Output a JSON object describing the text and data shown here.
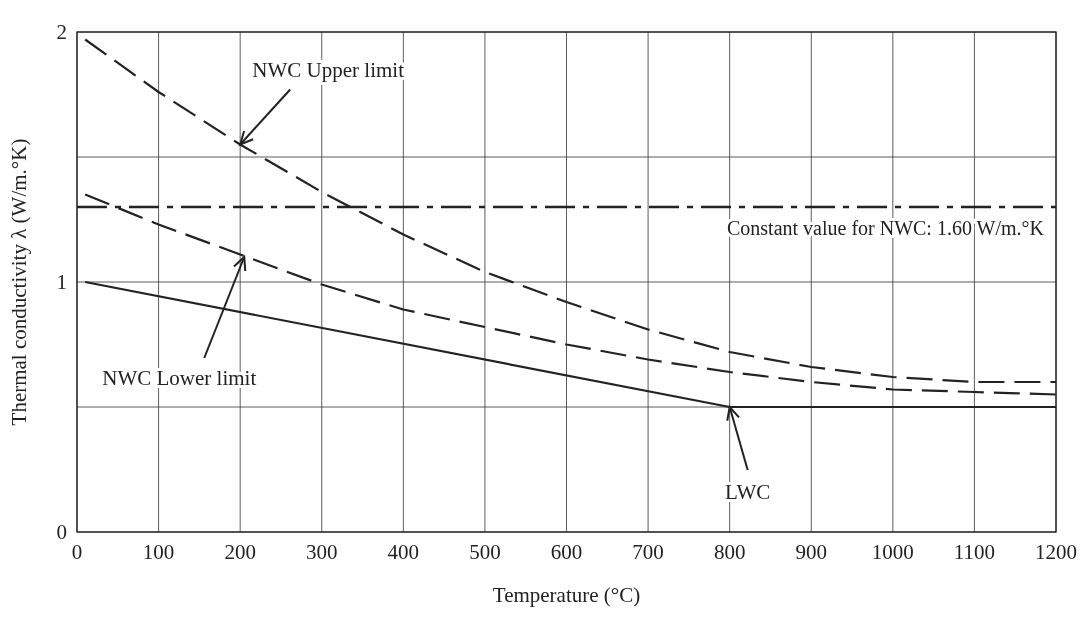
{
  "chart_data": {
    "type": "line",
    "xlabel": "Temperature (°C)",
    "ylabel": "Thermal conductivity λ (W/m.°K)",
    "xlim": [
      0,
      1200
    ],
    "xticks": [
      0,
      100,
      200,
      300,
      400,
      500,
      600,
      700,
      800,
      900,
      1000,
      1100,
      1200
    ],
    "ylim": [
      0,
      2
    ],
    "yticks": [
      0,
      {
        "value": 0.5,
        "label": null
      },
      1,
      {
        "value": 1.5,
        "label": null
      },
      2
    ],
    "grid": true,
    "series": [
      {
        "color": "#222222",
        "line_style": "dashed",
        "x": [
          10,
          100,
          200,
          300,
          400,
          500,
          600,
          700,
          800,
          900,
          1000,
          1100,
          1200
        ],
        "values": [
          1.97,
          1.76,
          1.55,
          1.36,
          1.19,
          1.04,
          0.92,
          0.81,
          0.72,
          0.66,
          0.62,
          0.6,
          0.6
        ]
      },
      {
        "color": "#222222",
        "line_style": "dashed",
        "x": [
          10,
          100,
          200,
          300,
          400,
          500,
          600,
          700,
          800,
          900,
          1000,
          1100,
          1200
        ],
        "values": [
          1.35,
          1.23,
          1.11,
          0.99,
          0.89,
          0.82,
          0.75,
          0.69,
          0.64,
          0.6,
          0.57,
          0.56,
          0.55
        ]
      },
      {
        "color": "#222222",
        "line_style": "solid",
        "x": [
          10,
          800,
          1200
        ],
        "values": [
          1.0,
          0.5,
          0.5
        ]
      }
    ],
    "ref_lines": [
      {
        "axis": "y",
        "value": 1.3,
        "color": "#222222",
        "line_style": "dashed"
      }
    ],
    "annotations": [
      "Constant value for NWC: 1.60 W/m.°K",
      {
        "text": "NWC Upper limit",
        "x": 200,
        "y": 1.55
      },
      {
        "text": "NWC Lower limit",
        "x": 205,
        "y": 1.1
      },
      {
        "text": "LWC",
        "x": 800,
        "y": 0.5
      }
    ]
  }
}
